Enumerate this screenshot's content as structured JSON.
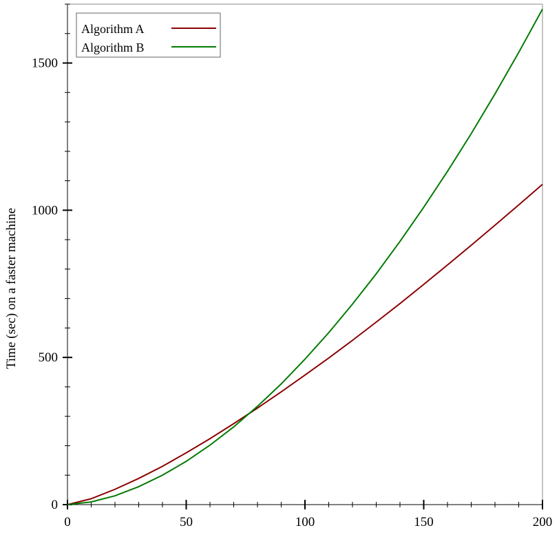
{
  "chart_data": {
    "type": "line",
    "title": "",
    "xlabel": "",
    "ylabel": "Time (sec) on a faster machine",
    "xlim": [
      0,
      200
    ],
    "ylim": [
      0,
      1700
    ],
    "x_ticks": [
      "0",
      "50",
      "100",
      "150",
      "200"
    ],
    "y_ticks": [
      "0",
      "500",
      "1000",
      "1500"
    ],
    "grid": false,
    "legend_position": "top-left",
    "series": [
      {
        "name": "Algorithm A",
        "color": "#8b0000",
        "points": [
          [
            0,
            0
          ],
          [
            10,
            20
          ],
          [
            20,
            52
          ],
          [
            30,
            89
          ],
          [
            40,
            130
          ],
          [
            50,
            176
          ],
          [
            60,
            224
          ],
          [
            70,
            275
          ],
          [
            80,
            328
          ],
          [
            90,
            383
          ],
          [
            100,
            440
          ],
          [
            110,
            498
          ],
          [
            120,
            558
          ],
          [
            130,
            620
          ],
          [
            140,
            683
          ],
          [
            150,
            748
          ],
          [
            160,
            814
          ],
          [
            170,
            881
          ],
          [
            180,
            949
          ],
          [
            190,
            1018
          ],
          [
            200,
            1088
          ]
        ]
      },
      {
        "name": "Algorithm B",
        "color": "#007a00",
        "points": [
          [
            0,
            0
          ],
          [
            10,
            9
          ],
          [
            20,
            30
          ],
          [
            30,
            61
          ],
          [
            40,
            100
          ],
          [
            50,
            147
          ],
          [
            60,
            202
          ],
          [
            70,
            264
          ],
          [
            80,
            334
          ],
          [
            90,
            410
          ],
          [
            100,
            494
          ],
          [
            110,
            584
          ],
          [
            120,
            681
          ],
          [
            130,
            784
          ],
          [
            140,
            894
          ],
          [
            150,
            1010
          ],
          [
            160,
            1132
          ],
          [
            170,
            1260
          ],
          [
            180,
            1395
          ],
          [
            190,
            1536
          ],
          [
            200,
            1683
          ]
        ]
      }
    ]
  }
}
